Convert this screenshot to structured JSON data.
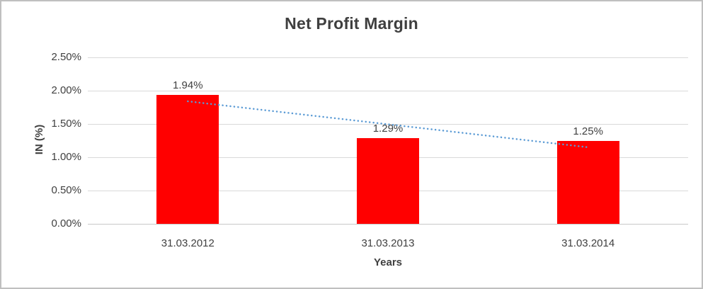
{
  "chart_data": {
    "type": "bar",
    "title": "Net Profit Margin",
    "xlabel": "Years",
    "ylabel": "IN (%)",
    "categories": [
      "31.03.2012",
      "31.03.2013",
      "31.03.2014"
    ],
    "values": [
      1.94,
      1.29,
      1.25
    ],
    "data_labels": [
      "1.94%",
      "1.29%",
      "1.25%"
    ],
    "ylim": [
      0,
      2.5
    ],
    "ytick_labels": [
      "0.00%",
      "0.50%",
      "1.00%",
      "1.50%",
      "2.00%",
      "2.50%"
    ],
    "ytick_values": [
      0,
      0.5,
      1.0,
      1.5,
      2.0,
      2.5
    ],
    "grid": true,
    "legend": "none",
    "trendline": {
      "type": "linear",
      "style": "dotted",
      "start_value": 1.84,
      "end_value": 1.15
    },
    "colors": {
      "bar": "#FF0000",
      "trendline": "#5B9BD5",
      "gridline": "#D9D9D9",
      "axis_line": "#C9C9C9",
      "text": "#404040",
      "title_text": "#3F3F3F",
      "background": "#FFFFFF",
      "frame_border": "#BFBFBF"
    }
  }
}
